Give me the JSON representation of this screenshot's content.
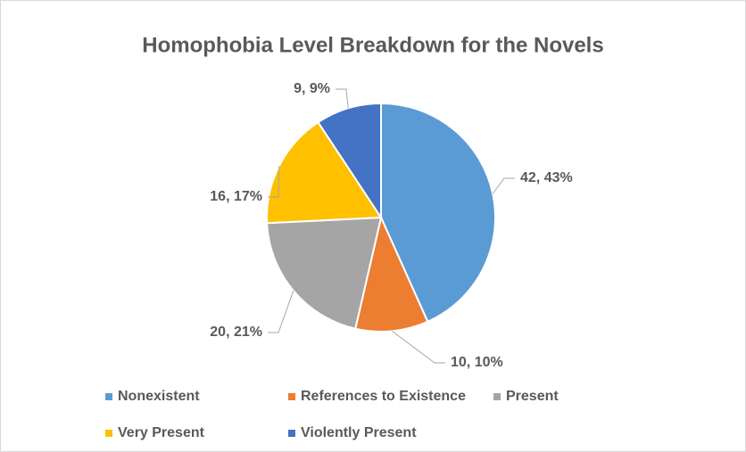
{
  "chart_data": {
    "type": "pie",
    "title": "Homophobia Level Breakdown for the Novels",
    "categories": [
      "Nonexistent",
      "References to Existence",
      "Present",
      "Very Present",
      "Violently Present"
    ],
    "values": [
      42,
      10,
      20,
      16,
      9
    ],
    "value_labels": [
      "42, 43%",
      "10, 10%",
      "20, 21%",
      "16, 17%",
      "9, 9%"
    ],
    "colors": [
      "#5b9bd5",
      "#ed7d31",
      "#a5a5a5",
      "#ffc000",
      "#4472c4"
    ],
    "legend": "bottom"
  }
}
